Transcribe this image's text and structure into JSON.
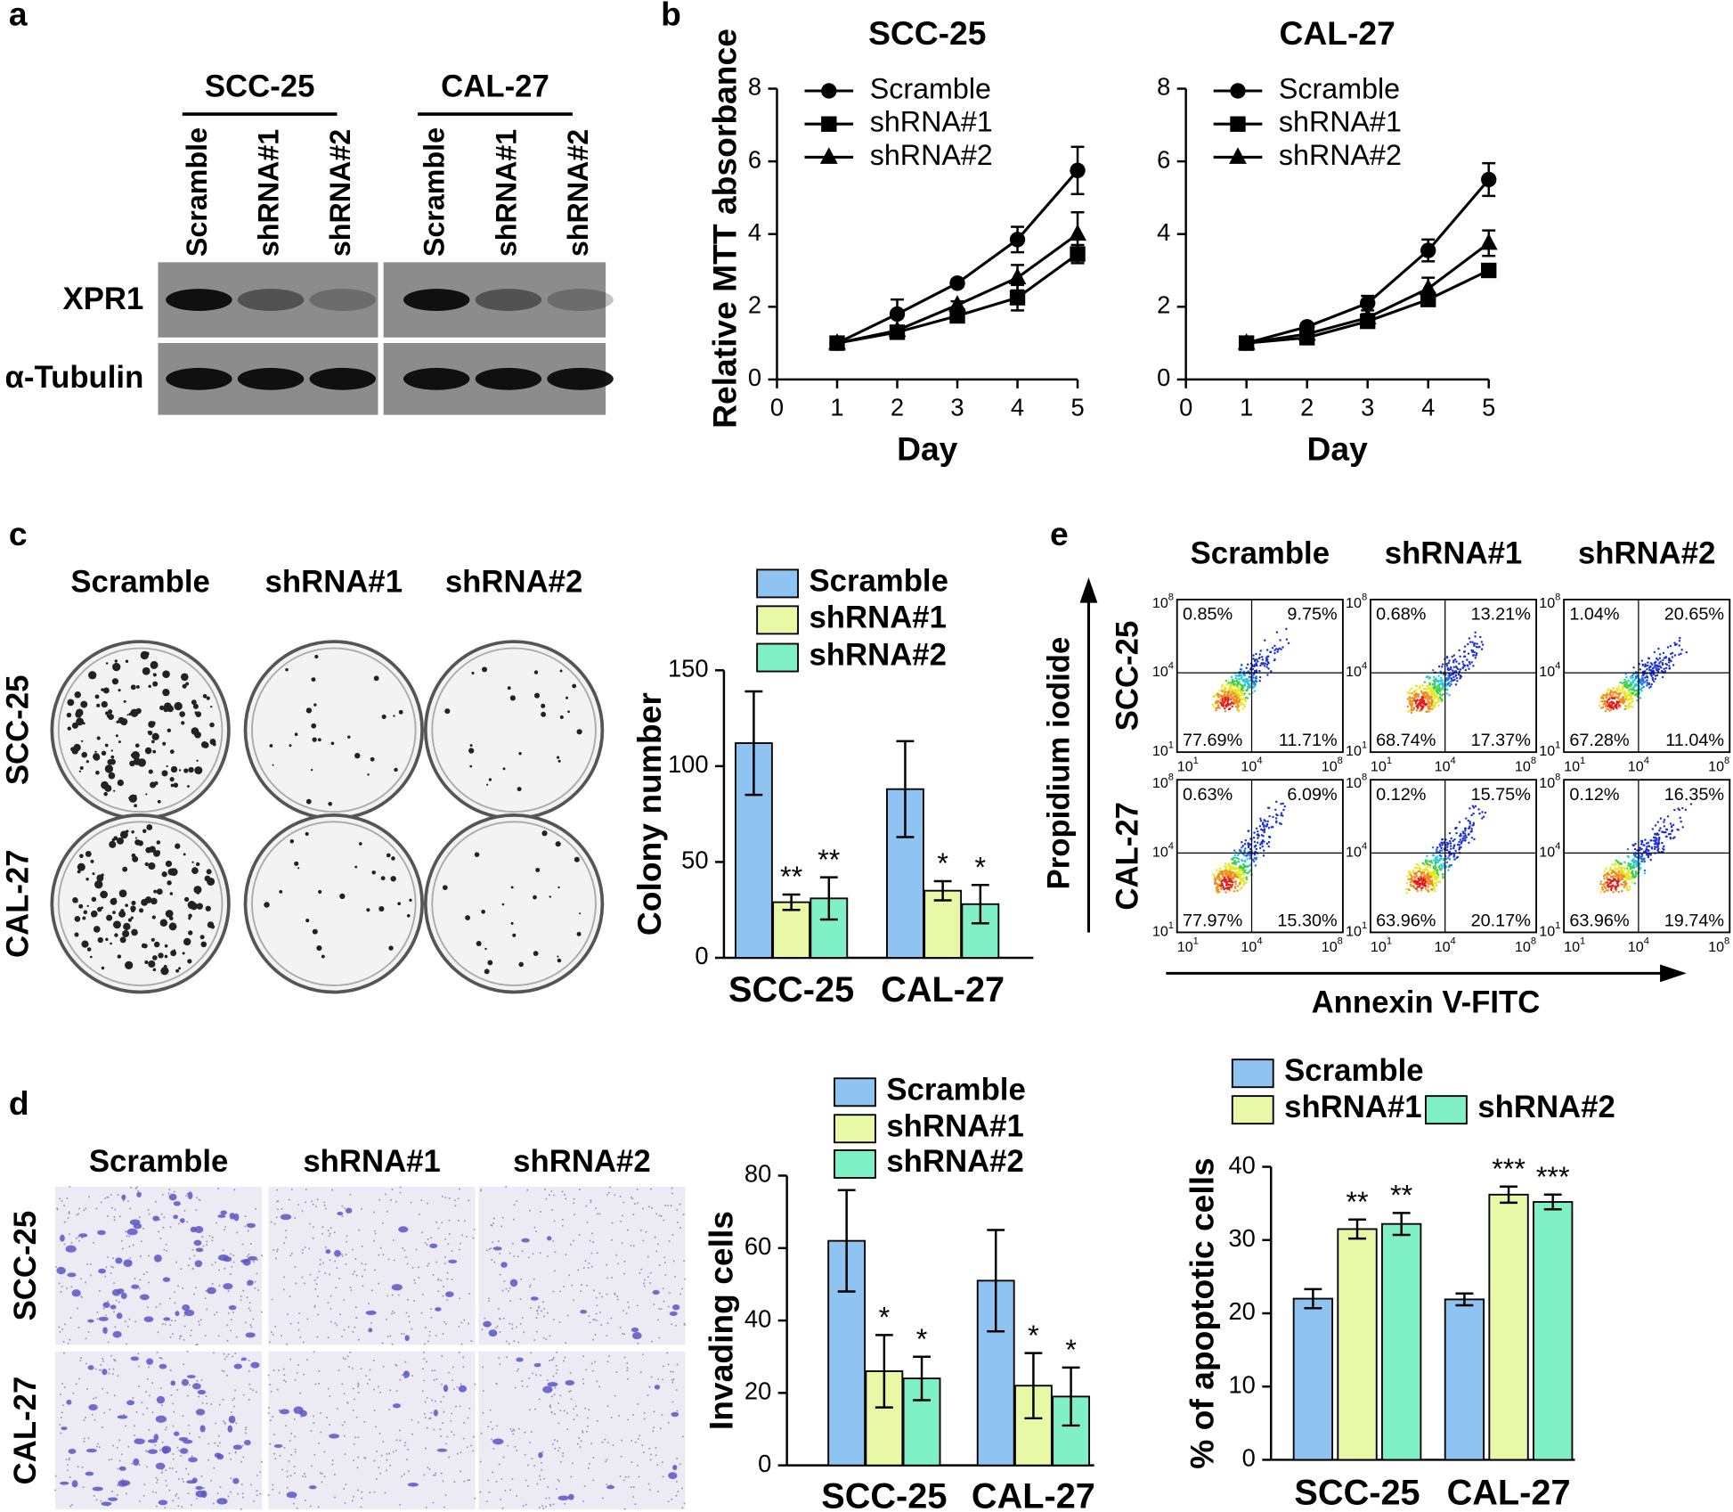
{
  "panel_labels": [
    "a",
    "b",
    "c",
    "d",
    "e"
  ],
  "blot": {
    "cell_lines": [
      "SCC-25",
      "CAL-27"
    ],
    "lanes": [
      "Scramble",
      "shRNA#1",
      "shRNA#2"
    ],
    "rows": [
      "XPR1",
      "α-Tubulin"
    ]
  },
  "colony_images": {
    "columns": [
      "Scramble",
      "shRNA#1",
      "shRNA#2"
    ],
    "rows": [
      "SCC-25",
      "CAL-27"
    ]
  },
  "invasion_images": {
    "columns": [
      "Scramble",
      "shRNA#1",
      "shRNA#2"
    ],
    "rows": [
      "SCC-25",
      "CAL-27"
    ]
  },
  "flow": {
    "columns": [
      "Scramble",
      "shRNA#1",
      "shRNA#2"
    ],
    "rows": [
      "SCC-25",
      "CAL-27"
    ],
    "y_label": "Propidium iodide",
    "x_label": "Annexin V-FITC",
    "axis_ticks": [
      {
        "base": "10",
        "exp": "1"
      },
      {
        "base": "10",
        "exp": "4"
      },
      {
        "base": "10",
        "exp": "8"
      }
    ],
    "plots": [
      [
        [
          "0.85%",
          "9.75%",
          "77.69%",
          "11.71%"
        ],
        [
          "0.68%",
          "13.21%",
          "68.74%",
          "17.37%"
        ],
        [
          "1.04%",
          "20.65%",
          "67.28%",
          "11.04%"
        ]
      ],
      [
        [
          "0.63%",
          "6.09%",
          "77.97%",
          "15.30%"
        ],
        [
          "0.12%",
          "15.75%",
          "63.96%",
          "20.17%"
        ],
        [
          "0.12%",
          "16.35%",
          "63.96%",
          "19.74%"
        ]
      ]
    ]
  },
  "chart_data": [
    {
      "type": "line",
      "title": "SCC-25",
      "x_label": "Day",
      "y_label": "Relative MTT absorbance",
      "x": [
        1,
        2,
        3,
        4,
        5
      ],
      "xlim": [
        0,
        5
      ],
      "xticks": [
        0,
        1,
        2,
        3,
        4,
        5
      ],
      "ylim": [
        0,
        8
      ],
      "yticks": [
        0,
        2,
        4,
        6,
        8
      ],
      "series": [
        {
          "name": "Scramble",
          "color": "#000000",
          "marker": "circle",
          "values": [
            1,
            1.8,
            2.65,
            3.85,
            5.75
          ],
          "errors": [
            0.05,
            0.4,
            0.1,
            0.35,
            0.65
          ]
        },
        {
          "name": "shRNA#1",
          "color": "#000000",
          "marker": "square",
          "values": [
            1,
            1.3,
            1.75,
            2.25,
            3.45
          ],
          "errors": [
            0.05,
            0.1,
            0.1,
            0.35,
            0.25
          ]
        },
        {
          "name": "shRNA#2",
          "color": "#000000",
          "marker": "triangle",
          "values": [
            1,
            1.35,
            2.05,
            2.8,
            4.0
          ],
          "errors": [
            0.05,
            0.1,
            0.1,
            0.35,
            0.6
          ]
        }
      ]
    },
    {
      "type": "line",
      "title": "CAL-27",
      "x_label": "Day",
      "x": [
        1,
        2,
        3,
        4,
        5
      ],
      "xlim": [
        0,
        5
      ],
      "xticks": [
        0,
        1,
        2,
        3,
        4,
        5
      ],
      "ylim": [
        0,
        8
      ],
      "yticks": [
        0,
        2,
        4,
        6,
        8
      ],
      "series": [
        {
          "name": "Scramble",
          "color": "#000000",
          "marker": "circle",
          "values": [
            1,
            1.45,
            2.1,
            3.55,
            5.5
          ],
          "errors": [
            0.05,
            0.1,
            0.2,
            0.3,
            0.45
          ]
        },
        {
          "name": "shRNA#1",
          "color": "#000000",
          "marker": "square",
          "values": [
            1,
            1.15,
            1.6,
            2.2,
            3.0
          ],
          "errors": [
            0.05,
            0.1,
            0.1,
            0.15,
            0.15
          ]
        },
        {
          "name": "shRNA#2",
          "color": "#000000",
          "marker": "triangle",
          "values": [
            1,
            1.25,
            1.7,
            2.5,
            3.75
          ],
          "errors": [
            0.05,
            0.1,
            0.1,
            0.3,
            0.35
          ]
        }
      ]
    },
    {
      "type": "bar",
      "y_label": "Colony number",
      "categories": [
        "SCC-25",
        "CAL-27"
      ],
      "ylim": [
        0,
        150
      ],
      "yticks": [
        0,
        50,
        100,
        150
      ],
      "series": [
        {
          "name": "Scramble",
          "color": "#8fc3f2",
          "values": [
            112,
            88
          ],
          "errors": [
            27,
            25
          ]
        },
        {
          "name": "shRNA#1",
          "color": "#e9f8a6",
          "values": [
            29,
            35
          ],
          "errors": [
            4,
            5
          ],
          "significance": [
            "**",
            "*"
          ]
        },
        {
          "name": "shRNA#2",
          "color": "#80f0c6",
          "values": [
            31,
            28
          ],
          "errors": [
            11,
            10
          ],
          "significance": [
            "**",
            "*"
          ]
        }
      ]
    },
    {
      "type": "bar",
      "y_label": "Invading cells",
      "categories": [
        "SCC-25",
        "CAL-27"
      ],
      "ylim": [
        0,
        80
      ],
      "yticks": [
        0,
        20,
        40,
        60,
        80
      ],
      "series": [
        {
          "name": "Scramble",
          "color": "#8fc3f2",
          "values": [
            62,
            51
          ],
          "errors": [
            14,
            14
          ]
        },
        {
          "name": "shRNA#1",
          "color": "#e9f8a6",
          "values": [
            26,
            22
          ],
          "errors": [
            10,
            9
          ],
          "significance": [
            "*",
            "*"
          ]
        },
        {
          "name": "shRNA#2",
          "color": "#80f0c6",
          "values": [
            24,
            19
          ],
          "errors": [
            6,
            8
          ],
          "significance": [
            "*",
            "*"
          ]
        }
      ]
    },
    {
      "type": "bar",
      "y_label": "% of apoptotic cells",
      "categories": [
        "SCC-25",
        "CAL-27"
      ],
      "ylim": [
        0,
        40
      ],
      "yticks": [
        0,
        10,
        20,
        30,
        40
      ],
      "series": [
        {
          "name": "Scramble",
          "color": "#8fc3f2",
          "values": [
            22,
            21.9
          ],
          "errors": [
            1.3,
            0.8
          ]
        },
        {
          "name": "shRNA#1",
          "color": "#e9f8a6",
          "values": [
            31.5,
            36.2
          ],
          "errors": [
            1.3,
            1.1
          ],
          "significance": [
            "**",
            "***"
          ]
        },
        {
          "name": "shRNA#2",
          "color": "#80f0c6",
          "values": [
            32.2,
            35.2
          ],
          "errors": [
            1.5,
            1.0
          ],
          "significance": [
            "**",
            "***"
          ]
        }
      ]
    }
  ]
}
